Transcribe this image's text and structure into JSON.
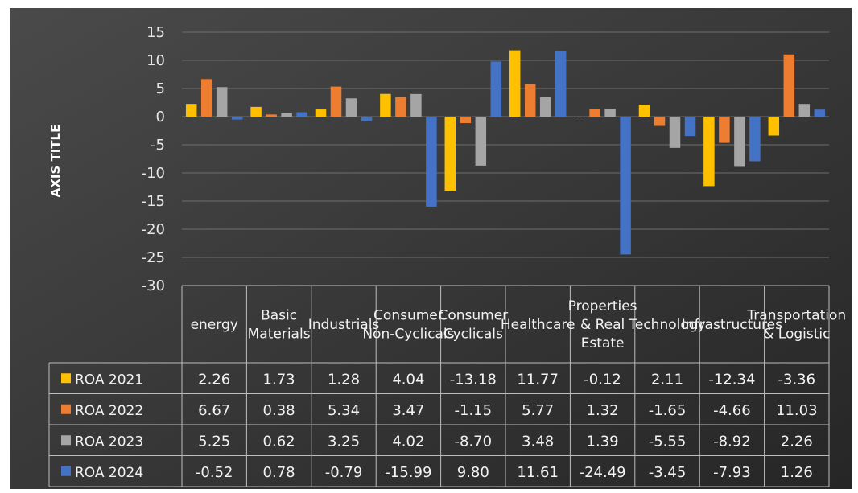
{
  "chart_data": {
    "type": "bar",
    "ylabel": "AXIS TITLE",
    "ylim": [
      -30,
      15
    ],
    "yticks": [
      15,
      10,
      5,
      0,
      -5,
      -10,
      -15,
      -20,
      -25,
      -30
    ],
    "grid": true,
    "legend": "data table",
    "categories": [
      [
        "energy"
      ],
      [
        "Basic",
        "Materials"
      ],
      [
        "Industrials"
      ],
      [
        "Consumer",
        "Non-Cyclicals"
      ],
      [
        "Consumer",
        "Cyclicals"
      ],
      [
        "Healthcare"
      ],
      [
        "Properties",
        "& Real",
        "Estate"
      ],
      [
        "Technology"
      ],
      [
        "Infrastructures"
      ],
      [
        "Transportation",
        "& Logistic"
      ]
    ],
    "series": [
      {
        "name": "ROA 2021",
        "color": "#FFC000",
        "values": [
          2.26,
          1.73,
          1.28,
          4.04,
          -13.18,
          11.77,
          -0.12,
          2.11,
          -12.34,
          -3.36
        ],
        "labels": [
          "2.26",
          "1.73",
          "1.28",
          "4.04",
          "-13.18",
          "11.77",
          "-0.12",
          "2.11",
          "-12.34",
          "-3.36"
        ]
      },
      {
        "name": "ROA 2022",
        "color": "#ED7D31",
        "values": [
          6.67,
          0.38,
          5.34,
          3.47,
          -1.15,
          5.77,
          1.32,
          -1.65,
          -4.66,
          11.03
        ],
        "labels": [
          "6.67",
          "0.38",
          "5.34",
          "3.47",
          "-1.15",
          "5.77",
          "1.32",
          "-1.65",
          "-4.66",
          "11.03"
        ]
      },
      {
        "name": "ROA 2023",
        "color": "#A5A5A5",
        "values": [
          5.25,
          0.62,
          3.25,
          4.02,
          -8.7,
          3.48,
          1.39,
          -5.55,
          -8.92,
          2.26
        ],
        "labels": [
          "5.25",
          "0.62",
          "3.25",
          "4.02",
          "-8.70",
          "3.48",
          "1.39",
          "-5.55",
          "-8.92",
          "2.26"
        ]
      },
      {
        "name": "ROA 2024",
        "color": "#4472C4",
        "values": [
          -0.52,
          0.78,
          -0.79,
          -15.99,
          9.8,
          11.61,
          -24.49,
          -3.45,
          -7.93,
          1.26
        ],
        "labels": [
          "-0.52",
          "0.78",
          "-0.79",
          "-15.99",
          "9.80",
          "11.61",
          "-24.49",
          "-3.45",
          "-7.93",
          "1.26"
        ]
      }
    ]
  }
}
